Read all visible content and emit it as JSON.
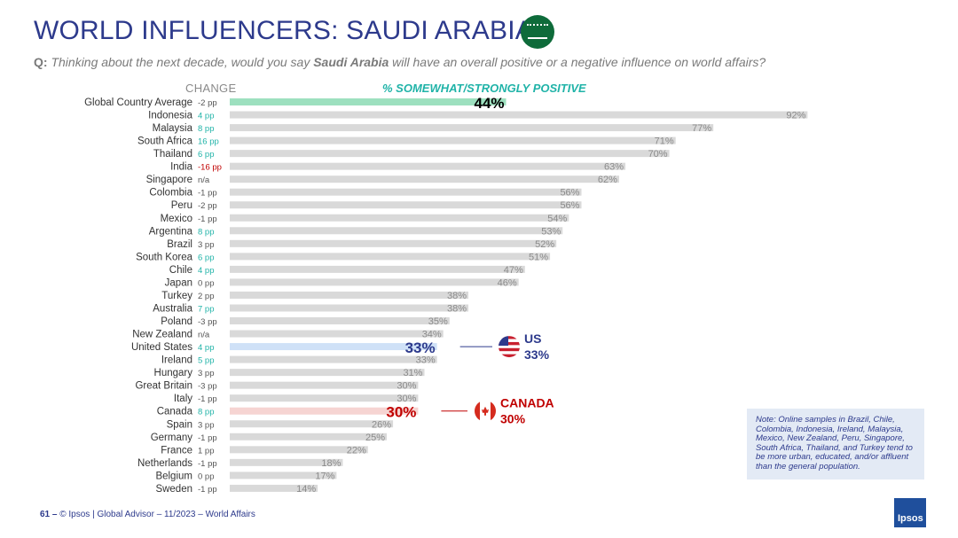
{
  "header": {
    "title": "WORLD INFLUENCERS: SAUDI ARABIA",
    "flag_icon": "saudi-arabia-flag-icon",
    "question_prefix": "Q:",
    "question_part1": "Thinking about the next decade, would you say",
    "question_bold": "Saudi Arabia",
    "question_part2": "will have an overall positive or a negative influence on world affairs?",
    "col_change": "CHANGE",
    "col_positive": "% SOMEWHAT/STRONGLY POSITIVE"
  },
  "colors": {
    "title": "#2d3a8c",
    "bar_default": "#d9d9d9",
    "bar_global": "#9de0bf",
    "bar_us": "#cfe1f7",
    "bar_canada": "#f6d4d2",
    "change_positive": "#20b3a8",
    "change_negative": "#c00000",
    "change_neutral": "#555555",
    "us_callout": "#2d3a8c",
    "canada_callout": "#c00000"
  },
  "chart_data": {
    "type": "bar",
    "orientation": "horizontal",
    "title": "% SOMEWHAT/STRONGLY POSITIVE",
    "xlim": [
      0,
      100
    ],
    "grid": false,
    "rows": [
      {
        "country": "Global Country Average",
        "change": "-2 pp",
        "value": 44,
        "label": "44%",
        "highlight": "global"
      },
      {
        "country": "Indonesia",
        "change": "4 pp",
        "value": 92,
        "label": "92%"
      },
      {
        "country": "Malaysia",
        "change": "8 pp",
        "value": 77,
        "label": "77%"
      },
      {
        "country": "South Africa",
        "change": "16 pp",
        "value": 71,
        "label": "71%"
      },
      {
        "country": "Thailand",
        "change": "6 pp",
        "value": 70,
        "label": "70%"
      },
      {
        "country": "India",
        "change": "-16 pp",
        "value": 63,
        "label": "63%"
      },
      {
        "country": "Singapore",
        "change": "n/a",
        "value": 62,
        "label": "62%"
      },
      {
        "country": "Colombia",
        "change": "-1 pp",
        "value": 56,
        "label": "56%"
      },
      {
        "country": "Peru",
        "change": "-2 pp",
        "value": 56,
        "label": "56%"
      },
      {
        "country": "Mexico",
        "change": "-1 pp",
        "value": 54,
        "label": "54%"
      },
      {
        "country": "Argentina",
        "change": "8 pp",
        "value": 53,
        "label": "53%"
      },
      {
        "country": "Brazil",
        "change": "3 pp",
        "value": 52,
        "label": "52%"
      },
      {
        "country": "South Korea",
        "change": "6 pp",
        "value": 51,
        "label": "51%"
      },
      {
        "country": "Chile",
        "change": "4 pp",
        "value": 47,
        "label": "47%"
      },
      {
        "country": "Japan",
        "change": "0 pp",
        "value": 46,
        "label": "46%"
      },
      {
        "country": "Turkey",
        "change": "2 pp",
        "value": 38,
        "label": "38%"
      },
      {
        "country": "Australia",
        "change": "7 pp",
        "value": 38,
        "label": "38%"
      },
      {
        "country": "Poland",
        "change": "-3 pp",
        "value": 35,
        "label": "35%"
      },
      {
        "country": "New Zealand",
        "change": "n/a",
        "value": 34,
        "label": "34%"
      },
      {
        "country": "United States",
        "change": "4 pp",
        "value": 33,
        "label": "33%",
        "highlight": "us"
      },
      {
        "country": "Ireland",
        "change": "5 pp",
        "value": 33,
        "label": "33%"
      },
      {
        "country": "Hungary",
        "change": "3 pp",
        "value": 31,
        "label": "31%"
      },
      {
        "country": "Great Britain",
        "change": "-3 pp",
        "value": 30,
        "label": "30%"
      },
      {
        "country": "Italy",
        "change": "-1 pp",
        "value": 30,
        "label": "30%"
      },
      {
        "country": "Canada",
        "change": "8 pp",
        "value": 30,
        "label": "30%",
        "highlight": "canada"
      },
      {
        "country": "Spain",
        "change": "3 pp",
        "value": 26,
        "label": "26%"
      },
      {
        "country": "Germany",
        "change": "-1 pp",
        "value": 25,
        "label": "25%"
      },
      {
        "country": "France",
        "change": "1 pp",
        "value": 22,
        "label": "22%"
      },
      {
        "country": "Netherlands",
        "change": "-1 pp",
        "value": 18,
        "label": "18%"
      },
      {
        "country": "Belgium",
        "change": "0 pp",
        "value": 17,
        "label": "17%"
      },
      {
        "country": "Sweden",
        "change": "-1 pp",
        "value": 14,
        "label": "14%"
      }
    ],
    "callouts": [
      {
        "target": "us",
        "title": "US",
        "value": "33%",
        "icon": "us-flag-icon"
      },
      {
        "target": "canada",
        "title": "CANADA",
        "value": "30%",
        "icon": "canada-flag-icon"
      }
    ]
  },
  "note": "Note: Online samples in Brazil, Chile, Colombia, Indonesia, Ireland, Malaysia, Mexico, New Zealand, Peru, Singapore, South Africa, Thailand, and Turkey tend to be more urban, educated, and/or affluent than the general population.",
  "footer": {
    "page": "61 –",
    "text": "© Ipsos | Global Advisor – 11/2023 – World Affairs"
  },
  "logo": "Ipsos"
}
